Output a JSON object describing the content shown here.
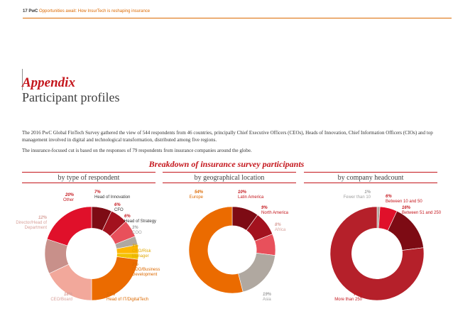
{
  "header": {
    "page_number": "17",
    "brand": "PwC",
    "doc_title": "Opportunities await: How InsurTech is reshaping insurance"
  },
  "title": "Appendix",
  "subtitle": "Participant profiles",
  "para1": "The 2016 PwC Global FinTech Survey gathered the view of 544 respondents from 46 countries, principally Chief Executive Officers (CEOs), Heads of Innovation, Chief Information Officers (CIOs) and top management involved in digital and technological transformation, distributed among five regions.",
  "para2": "The insurance-focused cut is based on the responses of 79 respondents from insurance companies around the globe.",
  "charts_title": "Breakdown of insurance survey participants",
  "colors": {
    "red": "#c4161c",
    "dark_red": "#7d0b14",
    "crimson": "#e0301e",
    "pink": "#e8505b",
    "salmon": "#f2a89b",
    "dusty": "#c8908a",
    "orange": "#eb6b00",
    "yellow": "#ffb600",
    "gold": "#f2c200",
    "grey": "#b0a8a0"
  },
  "chart_data": [
    {
      "type": "pie",
      "title": "by type of respondent",
      "slices": [
        {
          "label": "Head of Innovation",
          "value": 7,
          "display": "7%",
          "color": "#7d0b14"
        },
        {
          "label": "CFO",
          "value": 6,
          "display": "6%",
          "color": "#a3121e"
        },
        {
          "label": "Head of Strategy",
          "value": 6,
          "display": "6%",
          "color": "#e8505b"
        },
        {
          "label": "COO",
          "value": 3,
          "display": "3%",
          "color": "#b0a8a0"
        },
        {
          "label": "CRO/Risk Manager",
          "value": 3,
          "display": "3%",
          "color": "#ffb600"
        },
        {
          "label": "CDO/Business Development",
          "value": 2,
          "display": "2%",
          "color": "#f2c200"
        },
        {
          "label": "Head of IT/DigitalTech",
          "value": 23,
          "display": "23%",
          "color": "#eb6b00"
        },
        {
          "label": "CEO/Board",
          "value": 18,
          "display": "18%",
          "color": "#f2a89b"
        },
        {
          "label": "Director/Head of Department",
          "value": 12,
          "display": "12%",
          "color": "#c8908a"
        },
        {
          "label": "Other",
          "value": 20,
          "display": "20%",
          "color": "#e0102a"
        }
      ]
    },
    {
      "type": "pie",
      "title": "by geographical location",
      "slices": [
        {
          "label": "Latin America",
          "value": 10,
          "display": "10%",
          "color": "#7d0b14"
        },
        {
          "label": "North America",
          "value": 9,
          "display": "9%",
          "color": "#a3121e"
        },
        {
          "label": "Africa",
          "value": 8,
          "display": "8%",
          "color": "#e8505b"
        },
        {
          "label": "Asia",
          "value": 19,
          "display": "19%",
          "color": "#b0a8a0"
        },
        {
          "label": "Europe",
          "value": 54,
          "display": "54%",
          "color": "#eb6b00"
        }
      ]
    },
    {
      "type": "pie",
      "title": "by company headcount",
      "slices": [
        {
          "label": "Fewer than 10",
          "value": 1,
          "display": "1%",
          "color": "#b0a8a0"
        },
        {
          "label": "Between 10 and 50",
          "value": 6,
          "display": "6%",
          "color": "#e0102a"
        },
        {
          "label": "Between 51 and 250",
          "value": 16,
          "display": "16%",
          "color": "#7d0b14"
        },
        {
          "label": "More than 250",
          "value": 77,
          "display": "77%",
          "color": "#b5202a"
        }
      ]
    }
  ]
}
